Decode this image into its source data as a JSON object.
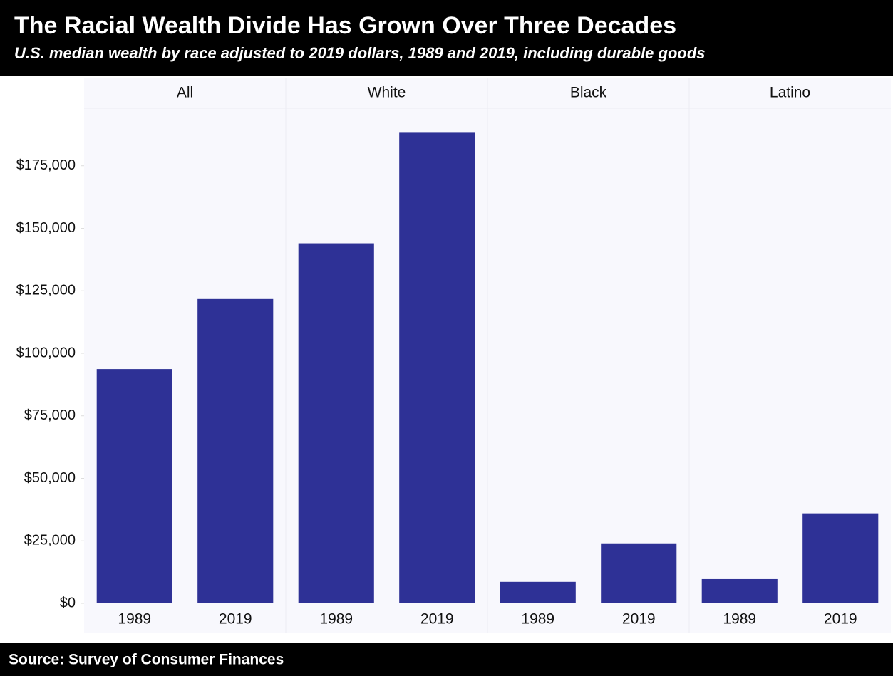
{
  "chart_data": {
    "type": "bar",
    "title": "The Racial Wealth Divide Has Grown Over Three Decades",
    "subtitle": "U.S. median wealth by race adjusted to 2019 dollars, 1989 and 2019, including durable goods",
    "source": "Source: Survey of Consumer Finances",
    "color": "#2e3196",
    "facets": [
      {
        "name": "All",
        "categories": [
          "1989",
          "2019"
        ],
        "values": [
          93700,
          121700
        ]
      },
      {
        "name": "White",
        "categories": [
          "1989",
          "2019"
        ],
        "values": [
          144000,
          188200
        ]
      },
      {
        "name": "Black",
        "categories": [
          "1989",
          "2019"
        ],
        "values": [
          8600,
          24000
        ]
      },
      {
        "name": "Latino",
        "categories": [
          "1989",
          "2019"
        ],
        "values": [
          9700,
          36000
        ]
      }
    ],
    "ylim": [
      0,
      198000
    ],
    "yticks": [
      {
        "value": 0,
        "label": "$0"
      },
      {
        "value": 25000,
        "label": "$25,000"
      },
      {
        "value": 50000,
        "label": "$50,000"
      },
      {
        "value": 75000,
        "label": "$75,000"
      },
      {
        "value": 100000,
        "label": "$100,000"
      },
      {
        "value": 125000,
        "label": "$125,000"
      },
      {
        "value": 150000,
        "label": "$150,000"
      },
      {
        "value": 175000,
        "label": "$175,000"
      }
    ]
  }
}
